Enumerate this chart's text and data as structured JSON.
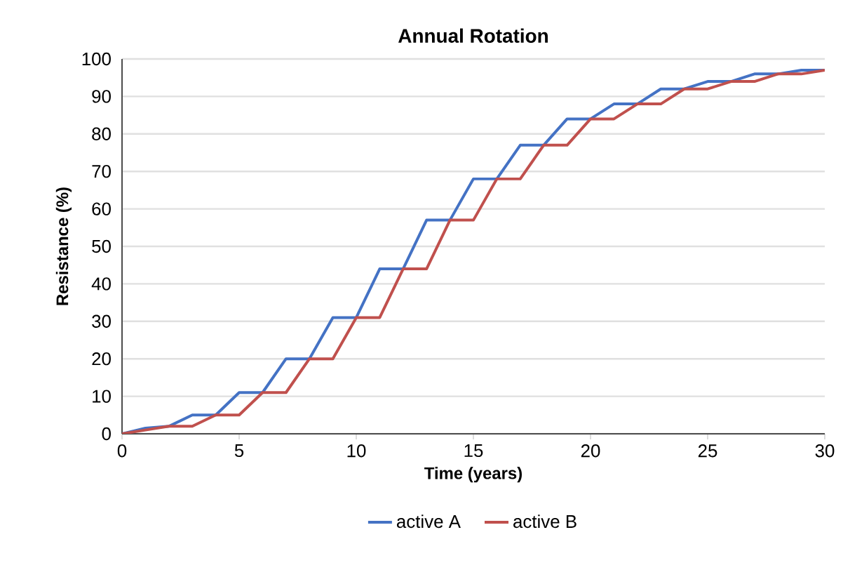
{
  "chart_data": {
    "type": "line",
    "title": "Annual Rotation",
    "xlabel": "Time (years)",
    "ylabel": "Resistance (%)",
    "x": [
      0,
      1,
      2,
      3,
      4,
      5,
      6,
      7,
      8,
      9,
      10,
      11,
      12,
      13,
      14,
      15,
      16,
      17,
      18,
      19,
      20,
      21,
      22,
      23,
      24,
      25,
      26,
      27,
      28,
      29,
      30
    ],
    "series": [
      {
        "name": "active A",
        "color": "#4472c4",
        "values": [
          0,
          1.5,
          2,
          5,
          5,
          11,
          11,
          20,
          20,
          31,
          31,
          44,
          44,
          57,
          57,
          68,
          68,
          77,
          77,
          84,
          84,
          88,
          88,
          92,
          92,
          94,
          94,
          96,
          96,
          97,
          97
        ]
      },
      {
        "name": "active B",
        "color": "#c0504d",
        "values": [
          0,
          1,
          2,
          2,
          5,
          5,
          11,
          11,
          20,
          20,
          31,
          31,
          44,
          44,
          57,
          57,
          68,
          68,
          77,
          77,
          84,
          84,
          88,
          88,
          92,
          92,
          94,
          94,
          96,
          96,
          97
        ]
      }
    ],
    "xlim": [
      0,
      30
    ],
    "xticks": [
      0,
      5,
      10,
      15,
      20,
      25,
      30
    ],
    "ylim": [
      0,
      100
    ],
    "yticks": [
      0,
      10,
      20,
      30,
      40,
      50,
      60,
      70,
      80,
      90,
      100
    ],
    "grid": "y",
    "legend": "bottom",
    "marker": "none",
    "line_style": "solid"
  }
}
